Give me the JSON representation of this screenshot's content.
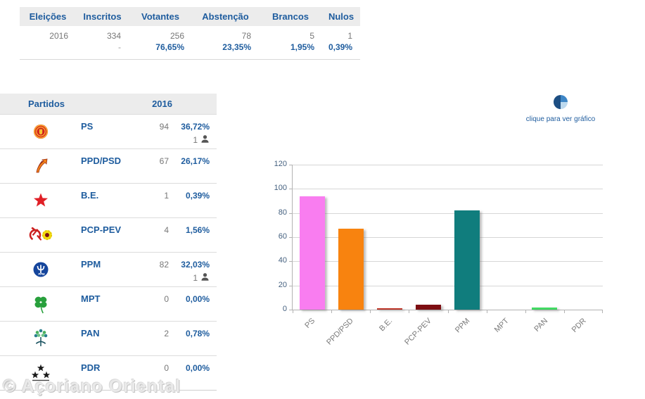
{
  "summary_table": {
    "columns": [
      {
        "header": "Eleições",
        "value": "2016",
        "sub": ""
      },
      {
        "header": "Inscritos",
        "value": "334",
        "sub": "-"
      },
      {
        "header": "Votantes",
        "value": "256",
        "sub": "76,65%"
      },
      {
        "header": "Abstenção",
        "value": "78",
        "sub": "23,35%"
      },
      {
        "header": "Brancos",
        "value": "5",
        "sub": "1,95%"
      },
      {
        "header": "Nulos",
        "value": "1",
        "sub": "0,39%"
      }
    ]
  },
  "parties_table": {
    "header_party": "Partidos",
    "header_year": "2016",
    "rows": [
      {
        "party": "PS",
        "votes": "94",
        "percent": "36,72%",
        "mandates": "1",
        "logo": "ps-logo"
      },
      {
        "party": "PPD/PSD",
        "votes": "67",
        "percent": "26,17%",
        "mandates": "",
        "logo": "ppd-psd-logo"
      },
      {
        "party": "B.E.",
        "votes": "1",
        "percent": "0,39%",
        "mandates": "",
        "logo": "be-logo"
      },
      {
        "party": "PCP-PEV",
        "votes": "4",
        "percent": "1,56%",
        "mandates": "",
        "logo": "pcp-pev-logo"
      },
      {
        "party": "PPM",
        "votes": "82",
        "percent": "32,03%",
        "mandates": "1",
        "logo": "ppm-logo"
      },
      {
        "party": "MPT",
        "votes": "0",
        "percent": "0,00%",
        "mandates": "",
        "logo": "mpt-logo"
      },
      {
        "party": "PAN",
        "votes": "2",
        "percent": "0,78%",
        "mandates": "",
        "logo": "pan-logo"
      },
      {
        "party": "PDR",
        "votes": "0",
        "percent": "0,00%",
        "mandates": "",
        "logo": "pdr-logo"
      }
    ]
  },
  "chart_link": {
    "label": "clique para ver gráfico",
    "icon": "pie-chart-icon"
  },
  "chart_data": {
    "type": "bar",
    "categories": [
      "PS",
      "PPD/PSD",
      "B.E.",
      "PCP-PEV",
      "PPM",
      "MPT",
      "PAN",
      "PDR"
    ],
    "values": [
      94,
      67,
      1,
      4,
      82,
      0,
      2,
      0
    ],
    "bar_colors": [
      "#f97df0",
      "#f8830f",
      "#c0392b",
      "#7d0e12",
      "#107d7d",
      null,
      "#41da63",
      null
    ],
    "title": "",
    "xlabel": "",
    "ylabel": "",
    "ylim": [
      0,
      120
    ],
    "yticks": [
      0,
      20,
      40,
      60,
      80,
      100,
      120
    ],
    "grid": true,
    "legend": "none"
  },
  "watermark": "© Açoriano Oriental",
  "colors": {
    "accent_blue": "#1e5c9e",
    "value_gray": "#777777",
    "header_bg": "#ececec"
  }
}
